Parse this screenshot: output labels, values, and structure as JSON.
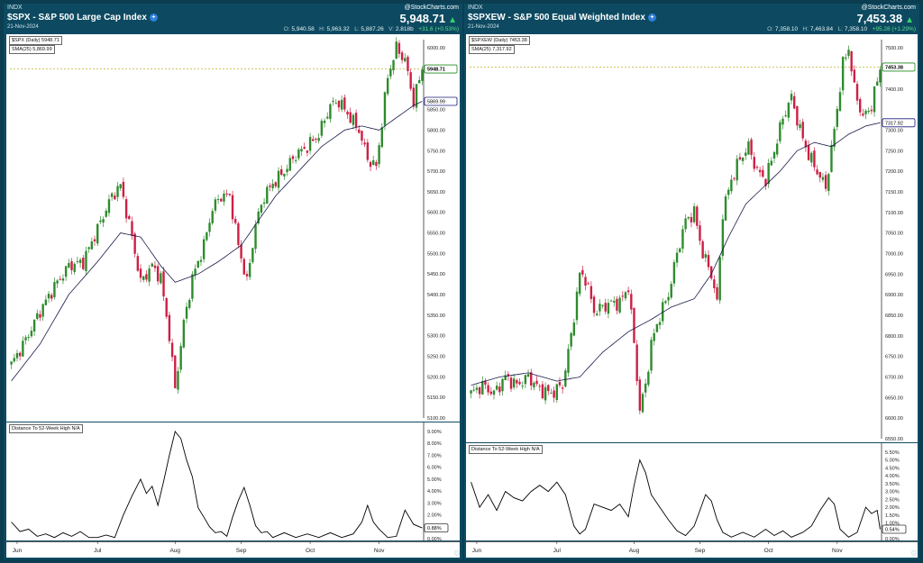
{
  "colors": {
    "up": "#2e8b2e",
    "down": "#cc1f45",
    "sma": "#1a1a4a",
    "line": "#000000",
    "lastPriceTag": "#1f8a1f",
    "smaTag": "#1a1a7a"
  },
  "icons": {
    "info": "info-circle-icon",
    "up": "up-triangle-icon",
    "settings": "gear-icon"
  },
  "left": {
    "exchange": "INDX",
    "title": "$SPX - S&P 500 Large Cap Index",
    "date": "21-Nov-2024",
    "logo": "@StockCharts.com",
    "price": "5,948.71",
    "ohlc": {
      "o_label": "O:",
      "o": "5,940.58",
      "h_label": "H:",
      "h": "5,963.32",
      "l_label": "L:",
      "l": "5,887.26",
      "v_label": "V:",
      "v": "2.818b",
      "change": "+31.6 (+0.53%)"
    },
    "price_legend": "$SPX (Daily) 5948.71",
    "sma_legend": "SMA(25) 5,869.99",
    "last_tag": "5948.71",
    "sma_tag": "5869.99",
    "ind_legend": "Distance To 52-Week High",
    "ind_na": "N/A",
    "ind_tag": "0.88%"
  },
  "right": {
    "exchange": "INDX",
    "title": "$SPXEW - S&P 500 Equal Weighted Index",
    "date": "21-Nov-2024",
    "logo": "@StockCharts.com",
    "price": "7,453.38",
    "ohlc": {
      "o_label": "O:",
      "o": "7,358.10",
      "h_label": "H:",
      "h": "7,463.84",
      "l_label": "L:",
      "l": "7,358.10",
      "change": "+95.28 (+1.29%)"
    },
    "price_legend": "$SPXEW (Daily) 7453.38",
    "sma_legend": "SMA(25) 7,317.92",
    "last_tag": "7453.38",
    "sma_tag": "7317.92",
    "ind_legend": "Distance To 52-Week High",
    "ind_na": "N/A",
    "ind_tag": "0.54%"
  },
  "chart_data": [
    {
      "type": "candlestick",
      "id": "spx",
      "x_ticks": [
        "Jun",
        "Jul",
        "Aug",
        "Sep",
        "Oct",
        "Nov"
      ],
      "x_tick_bars": [
        2,
        30,
        57,
        80,
        104,
        128
      ],
      "ylim": [
        5100,
        6020
      ],
      "y_ticks": [
        "5100.00",
        "5150.00",
        "5200.00",
        "5250.00",
        "5300.00",
        "5350.00",
        "5400.00",
        "5450.00",
        "5500.00",
        "5550.00",
        "5600.00",
        "5650.00",
        "5700.00",
        "5750.00",
        "5800.00",
        "5850.00",
        "6000.00"
      ],
      "y_tick_values": [
        5100,
        5150,
        5200,
        5250,
        5300,
        5350,
        5400,
        5450,
        5500,
        5550,
        5600,
        5650,
        5700,
        5750,
        5800,
        5850,
        6000
      ],
      "last_price": 5948.71,
      "sma_last": 5869.99,
      "close_path": [
        [
          0,
          5230
        ],
        [
          5,
          5290
        ],
        [
          10,
          5360
        ],
        [
          15,
          5420
        ],
        [
          20,
          5470
        ],
        [
          25,
          5480
        ],
        [
          30,
          5560
        ],
        [
          35,
          5640
        ],
        [
          38,
          5665
        ],
        [
          42,
          5540
        ],
        [
          45,
          5430
        ],
        [
          49,
          5470
        ],
        [
          52,
          5440
        ],
        [
          55,
          5300
        ],
        [
          57,
          5170
        ],
        [
          60,
          5330
        ],
        [
          63,
          5440
        ],
        [
          67,
          5520
        ],
        [
          70,
          5610
        ],
        [
          73,
          5640
        ],
        [
          76,
          5640
        ],
        [
          79,
          5520
        ],
        [
          82,
          5430
        ],
        [
          85,
          5570
        ],
        [
          88,
          5640
        ],
        [
          91,
          5670
        ],
        [
          95,
          5700
        ],
        [
          99,
          5740
        ],
        [
          103,
          5760
        ],
        [
          107,
          5790
        ],
        [
          111,
          5860
        ],
        [
          114,
          5870
        ],
        [
          118,
          5830
        ],
        [
          121,
          5800
        ],
        [
          124,
          5730
        ],
        [
          127,
          5710
        ],
        [
          131,
          5930
        ],
        [
          134,
          6000
        ],
        [
          137,
          5970
        ],
        [
          140,
          5870
        ],
        [
          143,
          5950
        ]
      ],
      "sma_path": [
        [
          0,
          5190
        ],
        [
          10,
          5280
        ],
        [
          20,
          5400
        ],
        [
          30,
          5480
        ],
        [
          38,
          5550
        ],
        [
          45,
          5540
        ],
        [
          52,
          5470
        ],
        [
          57,
          5430
        ],
        [
          65,
          5450
        ],
        [
          72,
          5480
        ],
        [
          80,
          5520
        ],
        [
          86,
          5580
        ],
        [
          92,
          5640
        ],
        [
          100,
          5700
        ],
        [
          108,
          5760
        ],
        [
          116,
          5800
        ],
        [
          122,
          5810
        ],
        [
          128,
          5800
        ],
        [
          134,
          5830
        ],
        [
          140,
          5860
        ],
        [
          143,
          5870
        ]
      ],
      "indicator": {
        "label": "Distance To 52-Week High",
        "ylim": [
          0,
          9
        ],
        "y_ticks": [
          "0.00%",
          "1.00%",
          "2.00%",
          "3.00%",
          "4.00%",
          "5.00%",
          "6.00%",
          "7.00%",
          "8.00%",
          "9.00%"
        ],
        "y_tick_values": [
          0,
          1,
          2,
          3,
          4,
          5,
          6,
          7,
          8,
          9
        ],
        "points": [
          [
            0,
            1.4
          ],
          [
            3,
            0.6
          ],
          [
            6,
            0.8
          ],
          [
            9,
            0.2
          ],
          [
            12,
            0.4
          ],
          [
            15,
            0.1
          ],
          [
            18,
            0.5
          ],
          [
            21,
            0.2
          ],
          [
            24,
            0.6
          ],
          [
            27,
            0.1
          ],
          [
            30,
            0.1
          ],
          [
            33,
            0.3
          ],
          [
            36,
            0.1
          ],
          [
            39,
            2.0
          ],
          [
            42,
            3.6
          ],
          [
            45,
            5.0
          ],
          [
            47,
            3.8
          ],
          [
            49,
            4.4
          ],
          [
            51,
            2.8
          ],
          [
            53,
            4.8
          ],
          [
            55,
            7.0
          ],
          [
            57,
            9.0
          ],
          [
            59,
            8.4
          ],
          [
            61,
            6.6
          ],
          [
            63,
            5.2
          ],
          [
            65,
            2.6
          ],
          [
            67,
            1.8
          ],
          [
            69,
            1.0
          ],
          [
            71,
            0.5
          ],
          [
            73,
            0.6
          ],
          [
            75,
            0.2
          ],
          [
            77,
            1.8
          ],
          [
            79,
            3.2
          ],
          [
            81,
            4.3
          ],
          [
            83,
            2.8
          ],
          [
            85,
            1.1
          ],
          [
            87,
            0.5
          ],
          [
            89,
            0.6
          ],
          [
            91,
            0.1
          ],
          [
            95,
            0.5
          ],
          [
            99,
            0.1
          ],
          [
            103,
            0.4
          ],
          [
            107,
            0.1
          ],
          [
            111,
            0.5
          ],
          [
            115,
            0.1
          ],
          [
            119,
            0.4
          ],
          [
            122,
            1.4
          ],
          [
            124,
            2.8
          ],
          [
            126,
            1.4
          ],
          [
            128,
            0.8
          ],
          [
            131,
            0.1
          ],
          [
            134,
            0.2
          ],
          [
            137,
            2.4
          ],
          [
            140,
            1.2
          ],
          [
            143,
            0.9
          ]
        ]
      }
    },
    {
      "type": "candlestick",
      "id": "spxew",
      "x_ticks": [
        "Jun",
        "Jul",
        "Aug",
        "Sep",
        "Oct",
        "Nov"
      ],
      "x_tick_bars": [
        2,
        30,
        57,
        80,
        104,
        128
      ],
      "ylim": [
        6550,
        7520
      ],
      "y_ticks": [
        "6550.00",
        "6600.00",
        "6650.00",
        "6700.00",
        "6750.00",
        "6800.00",
        "6850.00",
        "6900.00",
        "6950.00",
        "7000.00",
        "7050.00",
        "7100.00",
        "7150.00",
        "7200.00",
        "7250.00",
        "7300.00",
        "7400.00",
        "7450.00",
        "7500.00"
      ],
      "y_tick_values": [
        6550,
        6600,
        6650,
        6700,
        6750,
        6800,
        6850,
        6900,
        6950,
        7000,
        7050,
        7100,
        7150,
        7200,
        7250,
        7300,
        7400,
        7450,
        7500
      ],
      "last_price": 7453.38,
      "sma_last": 7317.92,
      "close_path": [
        [
          0,
          6660
        ],
        [
          4,
          6680
        ],
        [
          8,
          6660
        ],
        [
          12,
          6700
        ],
        [
          16,
          6680
        ],
        [
          20,
          6700
        ],
        [
          24,
          6670
        ],
        [
          28,
          6660
        ],
        [
          32,
          6680
        ],
        [
          35,
          6800
        ],
        [
          38,
          6950
        ],
        [
          40,
          6940
        ],
        [
          43,
          6860
        ],
        [
          46,
          6870
        ],
        [
          49,
          6880
        ],
        [
          52,
          6880
        ],
        [
          55,
          6920
        ],
        [
          57,
          6780
        ],
        [
          59,
          6620
        ],
        [
          61,
          6680
        ],
        [
          63,
          6780
        ],
        [
          66,
          6850
        ],
        [
          69,
          6900
        ],
        [
          72,
          7000
        ],
        [
          75,
          7080
        ],
        [
          78,
          7100
        ],
        [
          81,
          7000
        ],
        [
          84,
          6950
        ],
        [
          86,
          6880
        ],
        [
          88,
          7100
        ],
        [
          91,
          7180
        ],
        [
          94,
          7230
        ],
        [
          97,
          7260
        ],
        [
          100,
          7200
        ],
        [
          103,
          7180
        ],
        [
          106,
          7250
        ],
        [
          109,
          7330
        ],
        [
          112,
          7380
        ],
        [
          115,
          7300
        ],
        [
          118,
          7240
        ],
        [
          121,
          7200
        ],
        [
          124,
          7160
        ],
        [
          127,
          7300
        ],
        [
          130,
          7460
        ],
        [
          132,
          7500
        ],
        [
          134,
          7400
        ],
        [
          137,
          7330
        ],
        [
          140,
          7360
        ],
        [
          143,
          7450
        ]
      ],
      "sma_path": [
        [
          0,
          6680
        ],
        [
          10,
          6700
        ],
        [
          20,
          6710
        ],
        [
          30,
          6690
        ],
        [
          38,
          6700
        ],
        [
          46,
          6760
        ],
        [
          55,
          6810
        ],
        [
          63,
          6840
        ],
        [
          70,
          6870
        ],
        [
          78,
          6890
        ],
        [
          84,
          6950
        ],
        [
          90,
          7040
        ],
        [
          96,
          7120
        ],
        [
          102,
          7160
        ],
        [
          108,
          7200
        ],
        [
          114,
          7250
        ],
        [
          120,
          7270
        ],
        [
          126,
          7260
        ],
        [
          132,
          7290
        ],
        [
          138,
          7310
        ],
        [
          143,
          7318
        ]
      ],
      "indicator": {
        "label": "Distance To 52-Week High",
        "ylim": [
          0,
          5.5
        ],
        "y_ticks": [
          "0.00%",
          "0.50%",
          "1.00%",
          "1.50%",
          "2.00%",
          "2.50%",
          "3.00%",
          "3.50%",
          "4.00%",
          "4.50%",
          "5.00%",
          "5.50%"
        ],
        "y_tick_values": [
          0,
          0.5,
          1,
          1.5,
          2,
          2.5,
          3,
          3.5,
          4,
          4.5,
          5,
          5.5
        ],
        "points": [
          [
            0,
            3.6
          ],
          [
            3,
            2.0
          ],
          [
            6,
            2.8
          ],
          [
            9,
            1.8
          ],
          [
            12,
            3.0
          ],
          [
            15,
            2.6
          ],
          [
            18,
            2.4
          ],
          [
            21,
            3.0
          ],
          [
            24,
            3.4
          ],
          [
            27,
            3.0
          ],
          [
            30,
            3.6
          ],
          [
            33,
            2.8
          ],
          [
            36,
            0.8
          ],
          [
            38,
            0.3
          ],
          [
            40,
            0.6
          ],
          [
            43,
            2.2
          ],
          [
            46,
            2.0
          ],
          [
            49,
            1.8
          ],
          [
            52,
            2.2
          ],
          [
            55,
            1.4
          ],
          [
            57,
            3.4
          ],
          [
            59,
            5.0
          ],
          [
            61,
            4.2
          ],
          [
            63,
            2.8
          ],
          [
            66,
            2.0
          ],
          [
            69,
            1.2
          ],
          [
            72,
            0.5
          ],
          [
            75,
            0.2
          ],
          [
            78,
            0.8
          ],
          [
            80,
            1.8
          ],
          [
            82,
            2.8
          ],
          [
            84,
            2.4
          ],
          [
            86,
            1.2
          ],
          [
            88,
            0.4
          ],
          [
            91,
            0.1
          ],
          [
            95,
            0.4
          ],
          [
            99,
            0.1
          ],
          [
            103,
            0.6
          ],
          [
            106,
            0.2
          ],
          [
            109,
            0.5
          ],
          [
            112,
            0.1
          ],
          [
            116,
            0.4
          ],
          [
            119,
            0.8
          ],
          [
            122,
            1.8
          ],
          [
            125,
            2.6
          ],
          [
            127,
            2.2
          ],
          [
            129,
            0.6
          ],
          [
            132,
            0.1
          ],
          [
            135,
            0.4
          ],
          [
            138,
            2.0
          ],
          [
            140,
            1.6
          ],
          [
            142,
            1.8
          ],
          [
            143,
            0.6
          ]
        ]
      }
    }
  ]
}
